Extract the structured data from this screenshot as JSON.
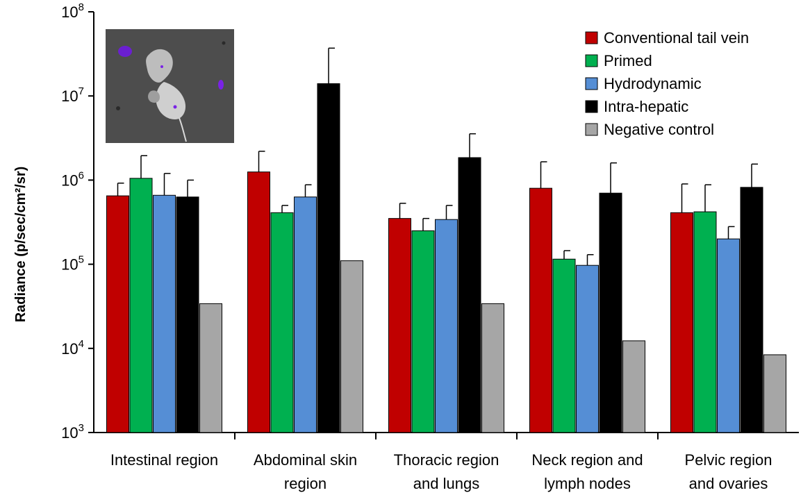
{
  "chart_data": {
    "type": "bar",
    "yscale": "log",
    "ylim": [
      1000,
      100000000
    ],
    "ylabel": "Radiance (p/sec/cm²/sr)",
    "yticks": [
      {
        "base": "10",
        "exp": "3",
        "value": 1000
      },
      {
        "base": "10",
        "exp": "4",
        "value": 10000
      },
      {
        "base": "10",
        "exp": "5",
        "value": 100000
      },
      {
        "base": "10",
        "exp": "6",
        "value": 1000000
      },
      {
        "base": "10",
        "exp": "7",
        "value": 10000000
      },
      {
        "base": "10",
        "exp": "8",
        "value": 100000000
      }
    ],
    "categories": [
      [
        "Intestinal region"
      ],
      [
        "Abdominal skin",
        "region"
      ],
      [
        "Thoracic region",
        "and lungs"
      ],
      [
        "Neck region and",
        "lymph nodes"
      ],
      [
        "Pelvic region",
        "and ovaries"
      ]
    ],
    "legend_position": "top-right",
    "has_inset_image": true,
    "series": [
      {
        "name": "Conventional tail vein",
        "color": "#c00000",
        "values": [
          650000,
          1250000,
          350000,
          800000,
          410000
        ],
        "errors": [
          920000,
          2200000,
          530000,
          1650000,
          900000
        ]
      },
      {
        "name": "Primed",
        "color": "#00b050",
        "values": [
          1050000,
          410000,
          250000,
          115000,
          420000
        ],
        "errors": [
          1950000,
          500000,
          350000,
          145000,
          880000
        ]
      },
      {
        "name": "Hydrodynamic",
        "color": "#558ed5",
        "values": [
          660000,
          630000,
          340000,
          97000,
          200000
        ],
        "errors": [
          1200000,
          880000,
          500000,
          130000,
          280000
        ]
      },
      {
        "name": "Intra-hepatic",
        "color": "#000000",
        "values": [
          630000,
          14000000,
          1850000,
          700000,
          820000
        ],
        "errors": [
          1000000,
          37000000,
          3550000,
          1600000,
          1550000
        ]
      },
      {
        "name": "Negative control",
        "color": "#a6a6a6",
        "values": [
          34000,
          110000,
          34000,
          12300,
          8400
        ],
        "errors": [
          null,
          null,
          null,
          null,
          null
        ]
      }
    ]
  }
}
